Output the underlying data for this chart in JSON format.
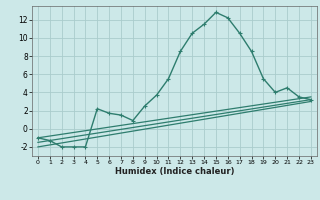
{
  "title": "",
  "xlabel": "Humidex (Indice chaleur)",
  "bg_color": "#cce8e8",
  "grid_color": "#aacccc",
  "line_color": "#2e7d6e",
  "xlim": [
    -0.5,
    23.5
  ],
  "ylim": [
    -3,
    13.5
  ],
  "xticks": [
    0,
    1,
    2,
    3,
    4,
    5,
    6,
    7,
    8,
    9,
    10,
    11,
    12,
    13,
    14,
    15,
    16,
    17,
    18,
    19,
    20,
    21,
    22,
    23
  ],
  "yticks": [
    -2,
    0,
    2,
    4,
    6,
    8,
    10,
    12
  ],
  "series": [
    [
      0,
      -1.0
    ],
    [
      1,
      -1.3
    ],
    [
      2,
      -2.0
    ],
    [
      3,
      -2.0
    ],
    [
      4,
      -2.0
    ],
    [
      5,
      2.2
    ],
    [
      6,
      1.7
    ],
    [
      7,
      1.5
    ],
    [
      8,
      0.9
    ],
    [
      9,
      2.5
    ],
    [
      10,
      3.7
    ],
    [
      11,
      5.5
    ],
    [
      12,
      8.5
    ],
    [
      13,
      10.5
    ],
    [
      14,
      11.5
    ],
    [
      15,
      12.8
    ],
    [
      16,
      12.2
    ],
    [
      17,
      10.5
    ],
    [
      18,
      8.5
    ],
    [
      19,
      5.5
    ],
    [
      20,
      4.0
    ],
    [
      21,
      4.5
    ],
    [
      22,
      3.5
    ],
    [
      23,
      3.2
    ]
  ],
  "line2": [
    [
      0,
      -1.0
    ],
    [
      23,
      3.5
    ]
  ],
  "line3": [
    [
      0,
      -1.5
    ],
    [
      23,
      3.2
    ]
  ],
  "line4": [
    [
      0,
      -2.0
    ],
    [
      23,
      3.0
    ]
  ]
}
